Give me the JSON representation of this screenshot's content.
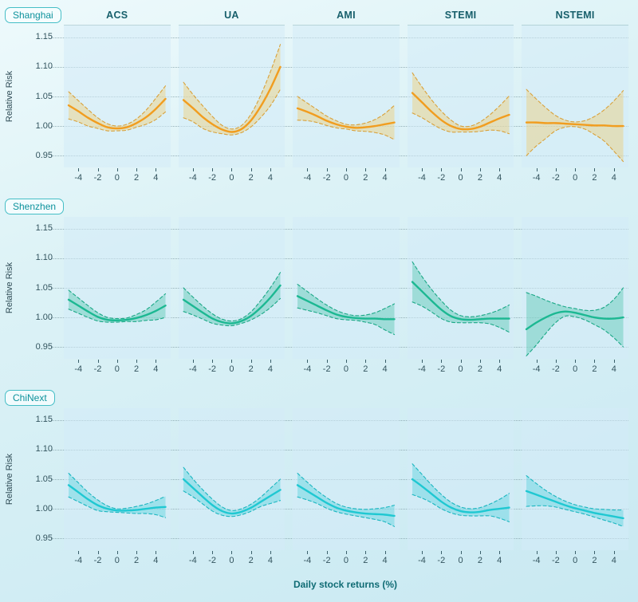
{
  "chart_data": {
    "type": "line",
    "xlabel": "Daily stock returns (%)",
    "ylabel": "Relative Risk",
    "columns": [
      "ACS",
      "UA",
      "AMI",
      "STEMI",
      "NSTEMI"
    ],
    "x": [
      -5,
      -4,
      -3,
      -2,
      -1,
      0,
      1,
      2,
      3,
      4,
      5
    ],
    "x_ticks": [
      -4,
      -2,
      0,
      2,
      4
    ],
    "y_ticks": [
      1.15,
      1.1,
      1.05,
      1.0,
      0.95
    ],
    "xlim": [
      -5.5,
      5.5
    ],
    "ylim": [
      0.93,
      1.17
    ],
    "grid": "dotted horizontal at y ticks",
    "band": "95% CI shown as shaded area with dashed borders",
    "rows": [
      {
        "label": "Shanghai",
        "line_color": "#f19d1f",
        "ci_color": "#d9a13a",
        "band_fill": "rgba(242,200,96,0.38)",
        "panels": [
          {
            "outcome": "ACS",
            "mean": [
              1.035,
              1.025,
              1.014,
              1.005,
              0.998,
              0.996,
              0.998,
              1.005,
              1.015,
              1.029,
              1.046
            ],
            "upper": [
              1.058,
              1.043,
              1.028,
              1.014,
              1.004,
              1.0,
              1.003,
              1.012,
              1.027,
              1.047,
              1.068
            ],
            "lower": [
              1.012,
              1.007,
              1.0,
              0.996,
              0.992,
              0.992,
              0.993,
              0.998,
              1.003,
              1.011,
              1.024
            ]
          },
          {
            "outcome": "UA",
            "mean": [
              1.044,
              1.03,
              1.015,
              1.003,
              0.994,
              0.99,
              0.995,
              1.01,
              1.034,
              1.064,
              1.1
            ],
            "upper": [
              1.074,
              1.053,
              1.034,
              1.016,
              1.001,
              0.995,
              1.001,
              1.021,
              1.053,
              1.093,
              1.138
            ],
            "lower": [
              1.014,
              1.007,
              0.996,
              0.99,
              0.987,
              0.985,
              0.989,
              0.999,
              1.015,
              1.035,
              1.062
            ]
          },
          {
            "outcome": "AMI",
            "mean": [
              1.03,
              1.024,
              1.017,
              1.009,
              1.003,
              0.999,
              0.997,
              0.998,
              1.0,
              1.003,
              1.006
            ],
            "upper": [
              1.05,
              1.039,
              1.028,
              1.017,
              1.009,
              1.003,
              1.002,
              1.005,
              1.011,
              1.021,
              1.035
            ],
            "lower": [
              1.01,
              1.009,
              1.006,
              1.001,
              0.997,
              0.995,
              0.992,
              0.991,
              0.989,
              0.985,
              0.977
            ]
          },
          {
            "outcome": "STEMI",
            "mean": [
              1.056,
              1.04,
              1.024,
              1.01,
              1.0,
              0.995,
              0.995,
              0.999,
              1.006,
              1.013,
              1.019
            ],
            "upper": [
              1.09,
              1.066,
              1.044,
              1.025,
              1.01,
              1.0,
              1.0,
              1.007,
              1.019,
              1.034,
              1.051
            ],
            "lower": [
              1.022,
              1.014,
              1.004,
              0.995,
              0.99,
              0.99,
              0.99,
              0.991,
              0.993,
              0.992,
              0.987
            ]
          },
          {
            "outcome": "NSTEMI",
            "mean": [
              1.006,
              1.006,
              1.005,
              1.005,
              1.004,
              1.003,
              1.002,
              1.001,
              1.001,
              1.0,
              1.0
            ],
            "upper": [
              1.062,
              1.046,
              1.031,
              1.018,
              1.01,
              1.007,
              1.009,
              1.016,
              1.027,
              1.042,
              1.06
            ],
            "lower": [
              0.95,
              0.966,
              0.979,
              0.992,
              0.998,
              0.999,
              0.995,
              0.986,
              0.975,
              0.958,
              0.94
            ]
          }
        ]
      },
      {
        "label": "Shenzhen",
        "line_color": "#1cb892",
        "ci_color": "#1aa886",
        "band_fill": "rgba(34,182,146,0.30)",
        "panels": [
          {
            "outcome": "ACS",
            "mean": [
              1.03,
              1.02,
              1.01,
              1.001,
              0.996,
              0.995,
              0.996,
              0.999,
              1.004,
              1.011,
              1.02
            ],
            "upper": [
              1.046,
              1.033,
              1.02,
              1.008,
              1.0,
              0.998,
              0.999,
              1.005,
              1.013,
              1.026,
              1.04
            ],
            "lower": [
              1.014,
              1.007,
              1.0,
              0.994,
              0.992,
              0.992,
              0.993,
              0.993,
              0.995,
              0.996,
              1.0
            ]
          },
          {
            "outcome": "UA",
            "mean": [
              1.03,
              1.019,
              1.008,
              0.998,
              0.992,
              0.99,
              0.994,
              1.003,
              1.017,
              1.034,
              1.054
            ],
            "upper": [
              1.05,
              1.034,
              1.019,
              1.006,
              0.997,
              0.994,
              0.998,
              1.01,
              1.029,
              1.051,
              1.076
            ],
            "lower": [
              1.01,
              1.004,
              0.997,
              0.99,
              0.987,
              0.986,
              0.99,
              0.996,
              1.005,
              1.017,
              1.032
            ]
          },
          {
            "outcome": "AMI",
            "mean": [
              1.036,
              1.028,
              1.02,
              1.012,
              1.005,
              1.001,
              0.999,
              0.998,
              0.998,
              0.997,
              0.997
            ],
            "upper": [
              1.056,
              1.044,
              1.032,
              1.021,
              1.012,
              1.006,
              1.003,
              1.004,
              1.008,
              1.015,
              1.023
            ],
            "lower": [
              1.016,
              1.012,
              1.008,
              1.003,
              0.998,
              0.996,
              0.995,
              0.992,
              0.988,
              0.979,
              0.971
            ]
          },
          {
            "outcome": "STEMI",
            "mean": [
              1.06,
              1.044,
              1.028,
              1.013,
              1.002,
              0.997,
              0.996,
              0.997,
              0.998,
              0.998,
              0.998
            ],
            "upper": [
              1.094,
              1.069,
              1.047,
              1.028,
              1.012,
              1.003,
              1.001,
              1.003,
              1.007,
              1.013,
              1.021
            ],
            "lower": [
              1.026,
              1.019,
              1.009,
              0.998,
              0.992,
              0.991,
              0.991,
              0.991,
              0.989,
              0.983,
              0.975
            ]
          },
          {
            "outcome": "NSTEMI",
            "mean": [
              0.98,
              0.991,
              1.0,
              1.007,
              1.01,
              1.008,
              1.004,
              1.0,
              0.998,
              0.998,
              1.0
            ],
            "upper": [
              1.042,
              1.036,
              1.029,
              1.023,
              1.018,
              1.015,
              1.012,
              1.012,
              1.017,
              1.03,
              1.05
            ],
            "lower": [
              0.935,
              0.953,
              0.973,
              0.991,
              1.002,
              1.001,
              0.996,
              0.988,
              0.979,
              0.966,
              0.95
            ]
          }
        ]
      },
      {
        "label": "ChiNext",
        "line_color": "#1fc8d2",
        "ci_color": "#1ab6c0",
        "band_fill": "rgba(35,200,210,0.30)",
        "panels": [
          {
            "outcome": "ACS",
            "mean": [
              1.04,
              1.028,
              1.016,
              1.006,
              1.0,
              0.997,
              0.997,
              0.998,
              1.0,
              1.002,
              1.003
            ],
            "upper": [
              1.06,
              1.044,
              1.028,
              1.015,
              1.005,
              1.0,
              1.001,
              1.004,
              1.008,
              1.014,
              1.021
            ],
            "lower": [
              1.02,
              1.012,
              1.004,
              0.997,
              0.995,
              0.994,
              0.993,
              0.992,
              0.992,
              0.99,
              0.985
            ]
          },
          {
            "outcome": "UA",
            "mean": [
              1.05,
              1.035,
              1.02,
              1.006,
              0.996,
              0.992,
              0.995,
              1.002,
              1.012,
              1.022,
              1.032
            ],
            "upper": [
              1.07,
              1.05,
              1.032,
              1.016,
              1.003,
              0.997,
              1.0,
              1.008,
              1.02,
              1.035,
              1.05
            ],
            "lower": [
              1.03,
              1.02,
              1.008,
              0.996,
              0.989,
              0.987,
              0.99,
              0.996,
              1.004,
              1.009,
              1.014
            ]
          },
          {
            "outcome": "AMI",
            "mean": [
              1.04,
              1.03,
              1.02,
              1.01,
              1.002,
              0.997,
              0.994,
              0.992,
              0.991,
              0.99,
              0.988
            ],
            "upper": [
              1.06,
              1.045,
              1.031,
              1.019,
              1.009,
              1.003,
              1.0,
              0.999,
              1.0,
              1.002,
              1.006
            ],
            "lower": [
              1.02,
              1.015,
              1.009,
              1.001,
              0.995,
              0.991,
              0.988,
              0.985,
              0.982,
              0.978,
              0.97
            ]
          },
          {
            "outcome": "STEMI",
            "mean": [
              1.05,
              1.038,
              1.025,
              1.012,
              1.002,
              0.996,
              0.994,
              0.995,
              0.998,
              1.0,
              1.002
            ],
            "upper": [
              1.076,
              1.058,
              1.04,
              1.024,
              1.011,
              1.003,
              1.0,
              1.002,
              1.008,
              1.016,
              1.026
            ],
            "lower": [
              1.024,
              1.018,
              1.01,
              1.0,
              0.993,
              0.989,
              0.988,
              0.988,
              0.988,
              0.984,
              0.978
            ]
          },
          {
            "outcome": "NSTEMI",
            "mean": [
              1.03,
              1.024,
              1.018,
              1.012,
              1.006,
              1.001,
              0.997,
              0.993,
              0.99,
              0.987,
              0.984
            ],
            "upper": [
              1.056,
              1.043,
              1.031,
              1.021,
              1.013,
              1.007,
              1.003,
              1.0,
              0.999,
              0.998,
              0.998
            ],
            "lower": [
              1.004,
              1.005,
              1.005,
              1.003,
              0.999,
              0.995,
              0.991,
              0.986,
              0.981,
              0.976,
              0.97
            ]
          }
        ]
      }
    ]
  }
}
